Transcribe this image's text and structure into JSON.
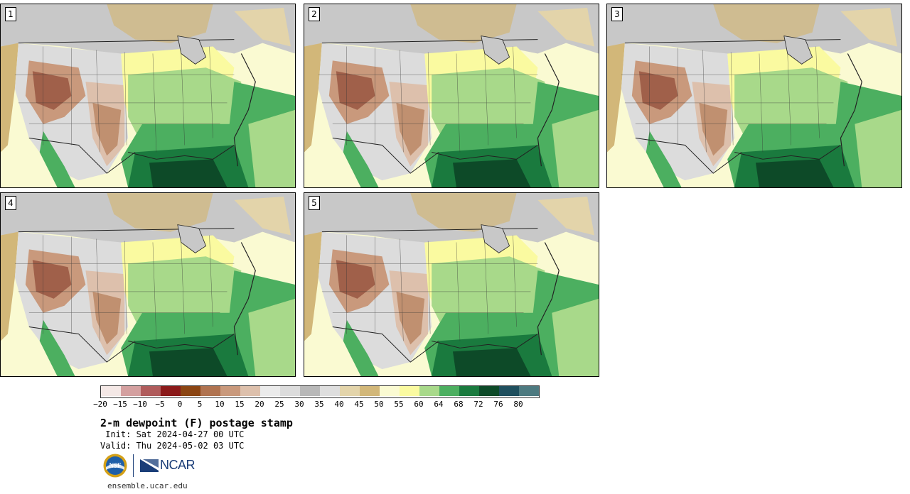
{
  "product": {
    "title": "2-m dewpoint (F) postage stamp",
    "init": " Init: Sat 2024-04-27 00 UTC",
    "valid": "Valid: Thu 2024-05-02 03 UTC"
  },
  "panels": [
    {
      "label": "1"
    },
    {
      "label": "2"
    },
    {
      "label": "3"
    },
    {
      "label": "4"
    },
    {
      "label": "5"
    }
  ],
  "colorbar": {
    "colors": [
      "#f4e8e6",
      "#d4a0a0",
      "#b05c5c",
      "#8b1a1a",
      "#8b4513",
      "#b07350",
      "#c9997c",
      "#ddc0ac",
      "#ebebeb",
      "#dcdcdc",
      "#b8b8b8",
      "#dedede",
      "#e3d4aa",
      "#d2b779",
      "#fafad2",
      "#fafaa0",
      "#a8d98a",
      "#4caf60",
      "#1a7a3e",
      "#0d4a28",
      "#1f4f5e",
      "#4d7a80"
    ],
    "ticks": [
      "−20",
      "−15",
      "−10",
      "−5",
      "0",
      "5",
      "10",
      "15",
      "20",
      "25",
      "30",
      "35",
      "40",
      "45",
      "50",
      "55",
      "60",
      "64",
      "68",
      "72",
      "76",
      "80"
    ]
  },
  "logos": {
    "nsf": "NSF",
    "ncar": "NCAR"
  },
  "footer": {
    "site": "ensemble.ucar.edu"
  },
  "icons": [
    "nsf-logo-icon",
    "ncar-logo-icon"
  ]
}
